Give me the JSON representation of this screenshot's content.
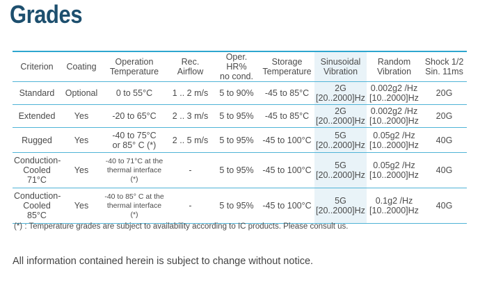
{
  "title": "Grades",
  "headers": [
    "Criterion",
    "Coating",
    "Operation\nTemperature",
    "Rec. Airflow",
    "Oper. HR%\nno cond.",
    "Storage\nTemperature",
    "Sinusoidal\nVibration",
    "Random\nVibration",
    "Shock 1/2\nSin. 11ms"
  ],
  "rows": [
    [
      "Standard",
      "Optional",
      "0 to 55°C",
      "1 .. 2 m/s",
      "5 to 90%",
      "-45 to 85°C",
      "2G\n[20..2000]Hz",
      "0.002g2 /Hz\n[10..2000]Hz",
      "20G"
    ],
    [
      "Extended",
      "Yes",
      "-20 to 65°C",
      "2 .. 3 m/s",
      "5 to 95%",
      "-45 to 85°C",
      "2G\n[20..2000]Hz",
      "0.002g2 /Hz\n[10..2000]Hz",
      "20G"
    ],
    [
      "Rugged",
      "Yes",
      "-40 to 75°C\nor 85° C (*)",
      "2 .. 5 m/s",
      "5 to 95%",
      "-45 to 100°C",
      "5G\n[20..2000]Hz",
      "0.05g2 /Hz\n[10..2000]Hz",
      "40G"
    ],
    [
      "Conduction-\nCooled 71°C",
      "Yes",
      "-40 to 71°C at the\nthermal interface (*)",
      "-",
      "5 to 95%",
      "-45 to 100°C",
      "5G\n[20..2000]Hz",
      "0.05g2 /Hz\n[10..2000]Hz",
      "40G"
    ],
    [
      "Conduction-\nCooled 85°C",
      "Yes",
      "-40 to 85° C at the\nthermal interface (*)",
      "-",
      "5 to 95%",
      "-45 to 100°C",
      "5G\n[20..2000]Hz",
      "0.1g2 /Hz\n[10..2000]Hz",
      "40G"
    ]
  ],
  "footnote": "(*) : Temperature grades are subject to availability according to IC products. Please consult us.",
  "disclaimer": "All information contained herein is subject to change without notice.",
  "colors": {
    "title": "#1d4f6e",
    "rule": "#2ea6cf",
    "shaded_column": "#e9f3f8"
  }
}
